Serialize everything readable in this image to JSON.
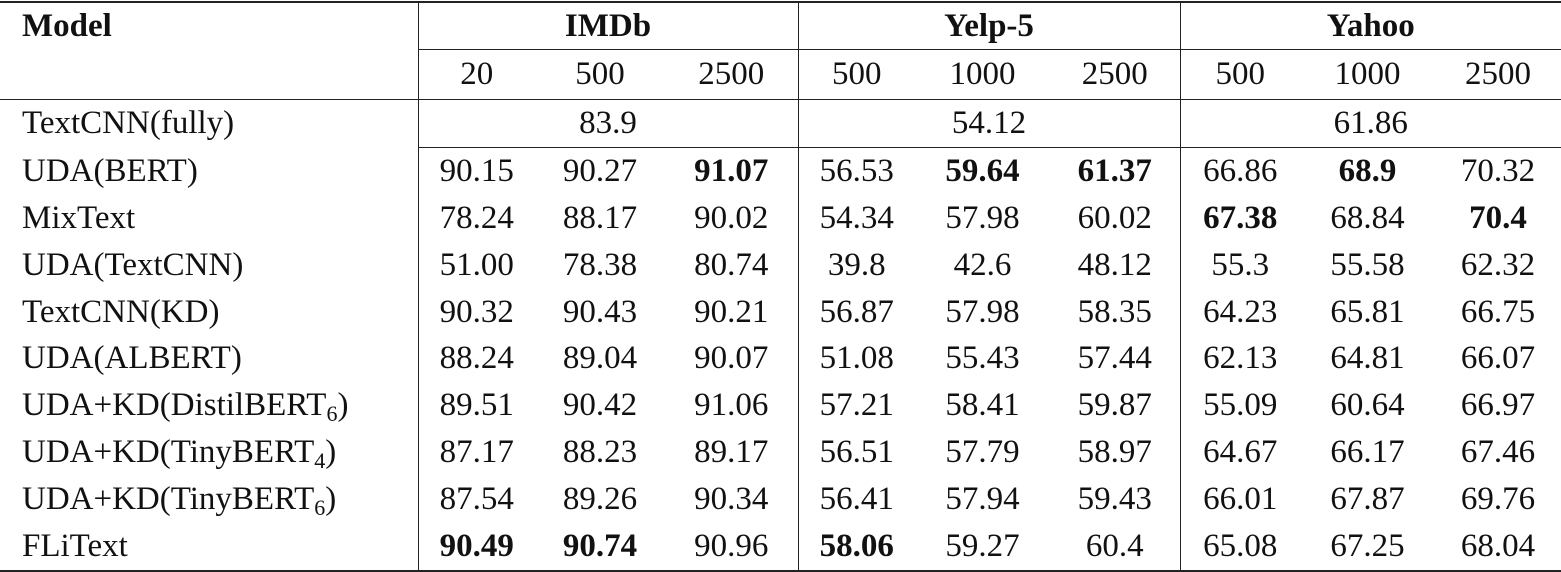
{
  "header": {
    "model": "Model",
    "groups": [
      {
        "name": "IMDb",
        "sizes": [
          "20",
          "500",
          "2500"
        ]
      },
      {
        "name": "Yelp-5",
        "sizes": [
          "500",
          "1000",
          "2500"
        ]
      },
      {
        "name": "Yahoo",
        "sizes": [
          "500",
          "1000",
          "2500"
        ]
      }
    ]
  },
  "fully": {
    "name": "TextCNN(fully)",
    "values": [
      "83.9",
      "54.12",
      "61.86"
    ]
  },
  "rows": [
    {
      "name": "UDA(BERT)",
      "sub": "",
      "values": [
        "90.15",
        "90.27",
        "91.07",
        "56.53",
        "59.64",
        "61.37",
        "66.86",
        "68.9",
        "70.32"
      ],
      "bold": [
        2,
        4,
        5,
        7
      ]
    },
    {
      "name": "MixText",
      "sub": "",
      "values": [
        "78.24",
        "88.17",
        "90.02",
        "54.34",
        "57.98",
        "60.02",
        "67.38",
        "68.84",
        "70.4"
      ],
      "bold": [
        6,
        8
      ]
    },
    {
      "name": "UDA(TextCNN)",
      "sub": "",
      "values": [
        "51.00",
        "78.38",
        "80.74",
        "39.8",
        "42.6",
        "48.12",
        "55.3",
        "55.58",
        "62.32"
      ],
      "bold": []
    },
    {
      "name": "TextCNN(KD)",
      "sub": "",
      "values": [
        "90.32",
        "90.43",
        "90.21",
        "56.87",
        "57.98",
        "58.35",
        "64.23",
        "65.81",
        "66.75"
      ],
      "bold": []
    },
    {
      "name": "UDA(ALBERT)",
      "sub": "",
      "values": [
        "88.24",
        "89.04",
        "90.07",
        "51.08",
        "55.43",
        "57.44",
        "62.13",
        "64.81",
        "66.07"
      ],
      "bold": []
    },
    {
      "name": "UDA+KD(DistilBERT",
      "sub": "6",
      "suffix": ")",
      "values": [
        "89.51",
        "90.42",
        "91.06",
        "57.21",
        "58.41",
        "59.87",
        "55.09",
        "60.64",
        "66.97"
      ],
      "bold": []
    },
    {
      "name": "UDA+KD(TinyBERT",
      "sub": "4",
      "suffix": ")",
      "values": [
        "87.17",
        "88.23",
        "89.17",
        "56.51",
        "57.79",
        "58.97",
        "64.67",
        "66.17",
        "67.46"
      ],
      "bold": []
    },
    {
      "name": "UDA+KD(TinyBERT",
      "sub": "6",
      "suffix": ")",
      "values": [
        "87.54",
        "89.26",
        "90.34",
        "56.41",
        "57.94",
        "59.43",
        "66.01",
        "67.87",
        "69.76"
      ],
      "bold": []
    },
    {
      "name": "FLiText",
      "sub": "",
      "values": [
        "90.49",
        "90.74",
        "90.96",
        "58.06",
        "59.27",
        "60.4",
        "65.08",
        "67.25",
        "68.04"
      ],
      "bold": [
        0,
        1,
        3
      ]
    }
  ]
}
